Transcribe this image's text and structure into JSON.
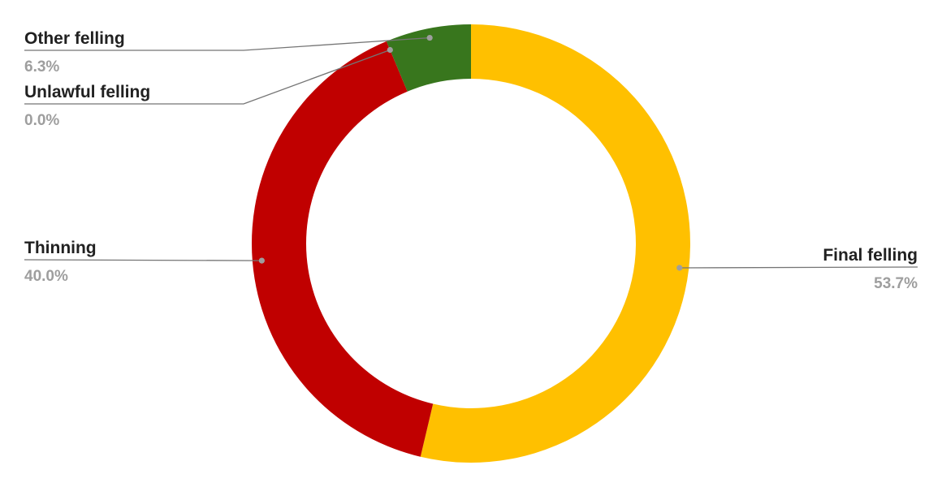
{
  "chart_data": {
    "type": "pie",
    "donut": true,
    "title": "",
    "slices": [
      {
        "label": "Final felling",
        "value": 53.7,
        "value_label": "53.7%",
        "color": "#FFC000"
      },
      {
        "label": "Thinning",
        "value": 40.0,
        "value_label": "40.0%",
        "color": "#C00000"
      },
      {
        "label": "Unlawful felling",
        "value": 0.0,
        "value_label": "0.0%",
        "color": "#A1A1A1"
      },
      {
        "label": "Other felling",
        "value": 6.3,
        "value_label": "6.3%",
        "color": "#38761D"
      }
    ],
    "legend": "labels-with-leader-lines"
  }
}
